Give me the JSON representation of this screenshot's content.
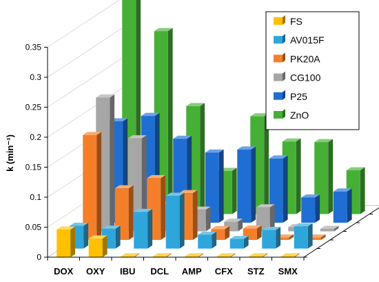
{
  "chart_data": {
    "type": "bar",
    "style": "3d-clustered-depth",
    "title": "",
    "xlabel": "",
    "ylabel": "k (min⁻¹)",
    "ylim": [
      0,
      0.35
    ],
    "yticks": [
      "0",
      "0.05",
      "0.1",
      "0.15",
      "0.2",
      "0.25",
      "0.3",
      "0.35"
    ],
    "grid": false,
    "legend_position": "top-right",
    "categories": [
      "DOX",
      "OXY",
      "IBU",
      "DCL",
      "AMP",
      "CFX",
      "STZ",
      "SMX"
    ],
    "series": [
      {
        "name": "FS",
        "color": "#FFC000",
        "values": [
          0.046,
          0.031,
          0.0,
          0.0,
          0.0,
          0.0,
          0.0,
          0.0
        ]
      },
      {
        "name": "AV015F",
        "color": "#2EA6DB",
        "values": [
          0.038,
          0.033,
          0.061,
          0.088,
          0.023,
          0.016,
          0.031,
          0.037
        ]
      },
      {
        "name": "PK20A",
        "color": "#F57F29",
        "values": [
          0.175,
          0.086,
          0.103,
          0.078,
          0.018,
          0.019,
          0.004,
          0.004
        ]
      },
      {
        "name": "CG100",
        "color": "#A6A6A6",
        "values": [
          0.223,
          0.155,
          0.045,
          0.036,
          0.016,
          0.04,
          0.007,
          0.004
        ]
      },
      {
        "name": "P25",
        "color": "#1F6ED4",
        "values": [
          0.169,
          0.178,
          0.14,
          0.117,
          0.122,
          0.107,
          0.042,
          0.052
        ]
      },
      {
        "name": "ZnO",
        "color": "#45B035",
        "values": [
          0.368,
          0.305,
          0.18,
          0.072,
          0.163,
          0.121,
          0.12,
          0.073
        ]
      }
    ]
  }
}
